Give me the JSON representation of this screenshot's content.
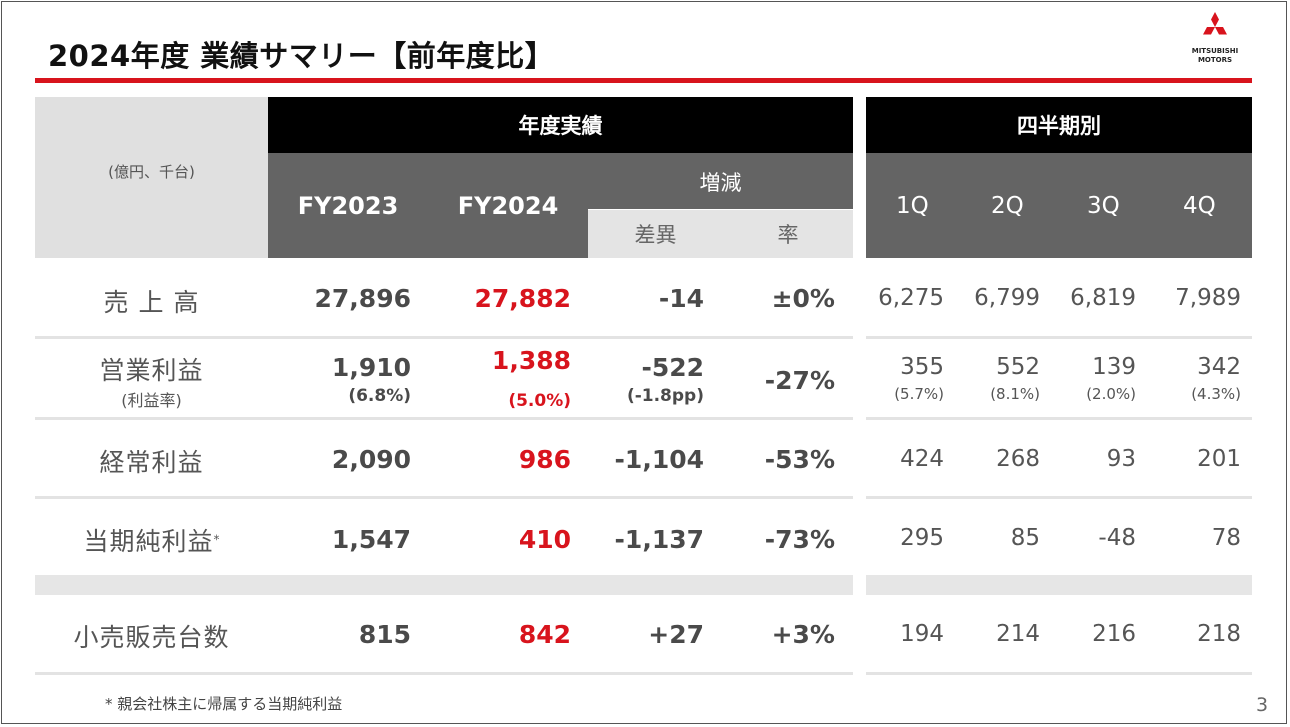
{
  "title": "2024年度 業績サマリー【前年度比】",
  "logo": {
    "line1": "MITSUBISHI",
    "line2": "MOTORS",
    "color": "#d8141d"
  },
  "header": {
    "unit": "(億円、千台)",
    "annual": "年度実績",
    "quarterly": "四半期別",
    "fy2023": "FY2023",
    "fy2024": "FY2024",
    "change": "増減",
    "diff": "差異",
    "rate": "率",
    "q1": "1Q",
    "q2": "2Q",
    "q3": "3Q",
    "q4": "4Q"
  },
  "rows": {
    "sales": {
      "label": "売 上 高",
      "fy2023": "27,896",
      "fy2024": "27,882",
      "diff": "-14",
      "rate": "±0%",
      "q": [
        "6,275",
        "6,799",
        "6,819",
        "7,989"
      ]
    },
    "op": {
      "label": "営業利益",
      "sublabel": "(利益率)",
      "fy2023": "1,910",
      "fy2023_sub": "(6.8%)",
      "fy2024": "1,388",
      "fy2024_sub": "(5.0%)",
      "diff": "-522",
      "diff_sub": "(-1.8pp)",
      "rate": "-27%",
      "q": [
        "355",
        "552",
        "139",
        "342"
      ],
      "q_sub": [
        "(5.7%)",
        "(8.1%)",
        "(2.0%)",
        "(4.3%)"
      ]
    },
    "ordinary": {
      "label": "経常利益",
      "fy2023": "2,090",
      "fy2024": "986",
      "diff": "-1,104",
      "rate": "-53%",
      "q": [
        "424",
        "268",
        "93",
        "201"
      ]
    },
    "net": {
      "label": "当期純利益",
      "mark": "*",
      "fy2023": "1,547",
      "fy2024": "410",
      "diff": "-1,137",
      "rate": "-73%",
      "q": [
        "295",
        "85",
        "-48",
        "78"
      ]
    },
    "units": {
      "label": "小売販売台数",
      "fy2023": "815",
      "fy2024": "842",
      "diff": "+27",
      "rate": "+3%",
      "q": [
        "194",
        "214",
        "216",
        "218"
      ]
    }
  },
  "footnote": "* 親会社株主に帰属する当期純利益",
  "page_number": "3"
}
